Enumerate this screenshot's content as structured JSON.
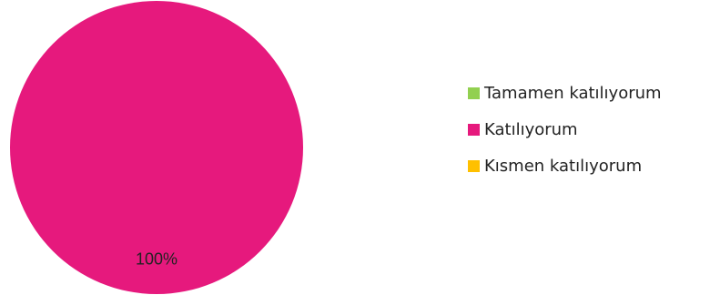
{
  "chart_data": {
    "type": "pie",
    "title": "",
    "categories": [
      "Tamamen katılıyorum",
      "Katılıyorum",
      "Kısmen katılıyorum"
    ],
    "values": [
      0,
      100,
      0
    ],
    "colors": [
      "#92D050",
      "#E6197D",
      "#FFC000"
    ],
    "data_labels": [
      "",
      "100%",
      ""
    ],
    "legend_position": "right"
  }
}
